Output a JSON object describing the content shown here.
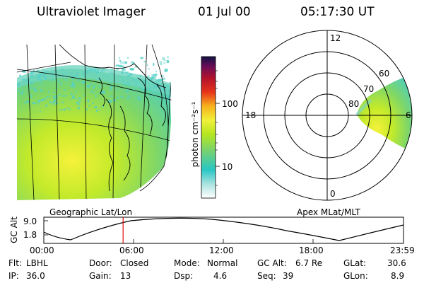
{
  "header": {
    "instrument": "Ultraviolet Imager",
    "date": "01 Jul 00",
    "time": "05:17:30 UT"
  },
  "colorbar": {
    "unit_label": "photon cm⁻²s⁻¹",
    "ticks": [
      {
        "label": "100",
        "value": 100
      },
      {
        "label": "10",
        "value": 10
      }
    ],
    "gradient": [
      "#ffffff",
      "#a9e3e0",
      "#28c7c4",
      "#6fd07a",
      "#b3e61f",
      "#f0f03a",
      "#f7b11c",
      "#e7321a",
      "#b0122c",
      "#6a0e56",
      "#111144"
    ]
  },
  "left_panel": {
    "caption": "Geographic Lat/Lon"
  },
  "right_panel": {
    "caption": "Apex MLat/MLT",
    "mlt_labels": [
      "12",
      "18",
      "6",
      "0"
    ],
    "lat_labels": [
      "60",
      "70",
      "80"
    ]
  },
  "altitude_strip": {
    "axis_label": "GC Alt",
    "y_ticks": [
      "9.0",
      "1.8"
    ],
    "x_ticks": [
      "00:00",
      "06:00",
      "12:00",
      "18:00",
      "23:59"
    ],
    "marker_time_hours": 5.29
  },
  "status": {
    "flt_label": "Flt:",
    "flt_value": "LBHL",
    "ip_label": "IP:",
    "ip_value": "36.0",
    "door_label": "Door:",
    "door_value": "Closed",
    "gain_label": "Gain:",
    "gain_value": "13",
    "mode_label": "Mode:",
    "mode_value": "Normal",
    "dsp_label": "Dsp:",
    "dsp_value": "4.6",
    "gcalt_label": "GC Alt:",
    "gcalt_value": "6.7 Re",
    "seq_label": "Seq:",
    "seq_value": "39",
    "glat_label": "GLat:",
    "glat_value": "30.6",
    "glon_label": "GLon:",
    "glon_value": "8.9"
  }
}
